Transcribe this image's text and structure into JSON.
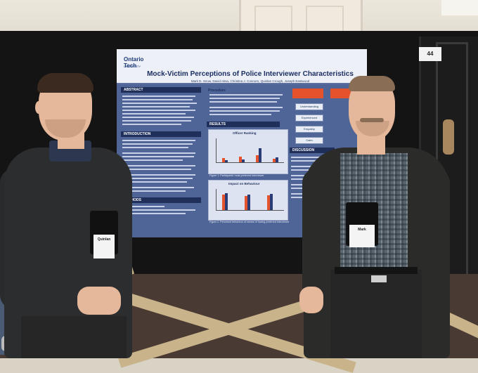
{
  "poster": {
    "logo": "Ontario Tech",
    "logo_sub": "UNIVERSITY",
    "title": "Mock-Victim Perceptions of Police Interviewer Characteristics",
    "authors": "Mark D. Snow, David Aksa, Christina J. Connors, Quinlan Crough, Joseph Eastwood",
    "sections": {
      "abstract": "ABSTRACT",
      "introduction": "INTRODUCTION",
      "methods": "METHODS",
      "procedure": "Procedure",
      "results": "RESULTS",
      "discussion": "DISCUSSION"
    },
    "figure1_title": "Officer Ranking",
    "figure1_caption": "Figure 1. Participants' most-preferred interviewer",
    "figure2_title": "Impact on Behaviour",
    "figure2_caption": "Figure 2. Perceived behaviour of means of having preferred interviewer",
    "flow_items": [
      "Understanding",
      "Experienced",
      "Empathy",
      "Calm"
    ]
  },
  "booth_number": "44",
  "badges": {
    "left": "Quinlan",
    "right": "Mark"
  }
}
